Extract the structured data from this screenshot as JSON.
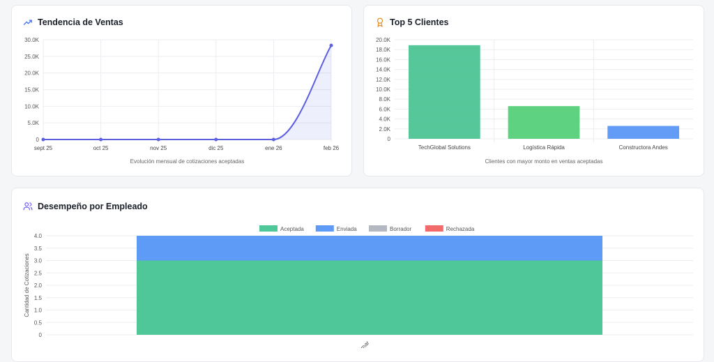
{
  "charts": {
    "trend": {
      "title": "Tendencia de Ventas",
      "icon": "trending-up-icon"
    },
    "clients": {
      "title": "Top 5 Clientes",
      "icon": "award-icon"
    },
    "employees": {
      "title": "Desempeño por Empleado",
      "icon": "users-icon"
    }
  },
  "chart_data": [
    {
      "type": "area",
      "title": "Tendencia de Ventas",
      "xlabel": "Evolución mensual de cotizaciones aceptadas",
      "categories": [
        "sept 25",
        "oct 25",
        "nov 25",
        "dic 25",
        "ene 26",
        "feb 26"
      ],
      "values": [
        0,
        0,
        0,
        0,
        0,
        28300
      ],
      "ylim": [
        0,
        30000
      ],
      "yticks": [
        "0",
        "5.0K",
        "10.0K",
        "15.0K",
        "20.0K",
        "25.0K",
        "30.0K"
      ],
      "grid": true,
      "color": "#5b5fe0"
    },
    {
      "type": "bar",
      "title": "Top 5 Clientes",
      "xlabel": "Clientes con mayor monto en ventas aceptadas",
      "categories": [
        "TechGlobal Solutions",
        "Logística Rápida",
        "Constructora Andes"
      ],
      "values": [
        18900,
        6600,
        2600
      ],
      "colors": [
        "#4cc493",
        "#55d07a",
        "#5b97f5"
      ],
      "ylim": [
        0,
        20000
      ],
      "yticks": [
        "0",
        "2.0K",
        "4.0K",
        "6.0K",
        "8.0K",
        "10.0K",
        "12.0K",
        "14.0K",
        "16.0K",
        "18.0K",
        "20.0K"
      ],
      "grid": true
    },
    {
      "type": "bar",
      "stacked": true,
      "title": "Desempeño por Empleado",
      "ylabel": "Cantidad de Cotizaciones",
      "categories": [
        "mar"
      ],
      "series": [
        {
          "name": "Aceptada",
          "values": [
            3
          ],
          "color": "#4fc799"
        },
        {
          "name": "Enviada",
          "values": [
            1
          ],
          "color": "#5e9bf6"
        },
        {
          "name": "Borrador",
          "values": [
            0
          ],
          "color": "#b4b8c0"
        },
        {
          "name": "Rechazada",
          "values": [
            0
          ],
          "color": "#f26b6b"
        }
      ],
      "ylim": [
        0,
        4
      ],
      "yticks": [
        "0",
        "0.5",
        "1.0",
        "1.5",
        "2.0",
        "2.5",
        "3.0",
        "3.5",
        "4.0"
      ],
      "legend": "top",
      "grid": true
    }
  ]
}
